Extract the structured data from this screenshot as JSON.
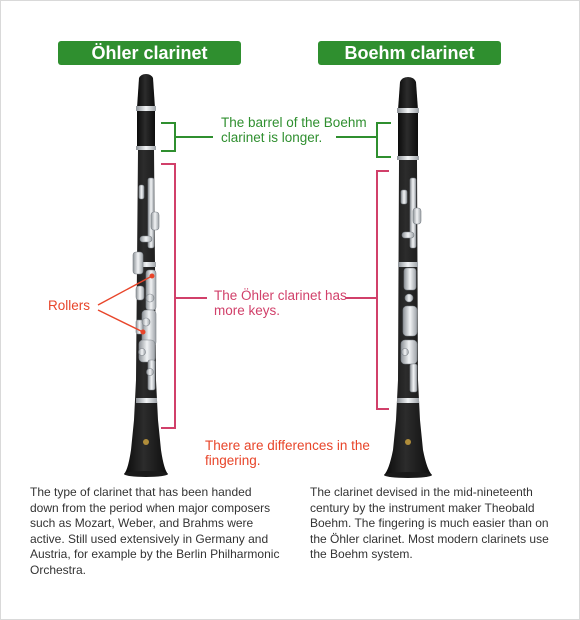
{
  "headings": {
    "ohler": "Öhler clarinet",
    "boehm": "Boehm clarinet"
  },
  "callouts": {
    "barrel": "The barrel of the Boehm clarinet is longer.",
    "keys": "The Öhler clarinet has more keys.",
    "rollers": "Rollers",
    "fingering": "There are differences in the fingering."
  },
  "descriptions": {
    "ohler": "The type of clarinet that has been handed down from the period when major composers such as Mozart, Weber, and Brahms were active. Still used extensively in Germany and Austria, for example by the Berlin Philharmonic Orchestra.",
    "boehm": "The clarinet devised in the mid-nineteenth century by the instrument maker Theobald Boehm. The fingering is much easier than on the Öhler clarinet. Most modern clarinets use the Boehm system."
  },
  "colors": {
    "green": "#2f8f2f",
    "pink": "#d1406a",
    "red": "#e8452a",
    "body": "#161616",
    "keys": "#c9cdd2"
  }
}
